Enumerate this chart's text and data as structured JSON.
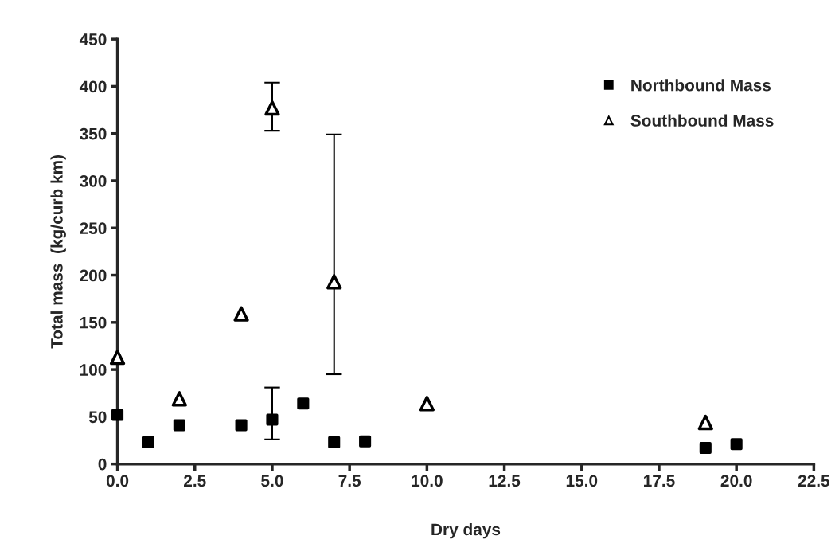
{
  "chart_data": {
    "type": "scatter",
    "xlabel": "Dry days",
    "ylabel": "Total mass  (kg/curb km)",
    "xlim": [
      0,
      22.5
    ],
    "xticks": [
      {
        "value": 0,
        "label": "0.0"
      },
      {
        "value": 2.5,
        "label": "2.5"
      },
      {
        "value": 5,
        "label": "5.0"
      },
      {
        "value": 7.5,
        "label": "7.5"
      },
      {
        "value": 10,
        "label": "10.0"
      },
      {
        "value": 12.5,
        "label": "12.5"
      },
      {
        "value": 15,
        "label": "15.0"
      },
      {
        "value": 17.5,
        "label": "17.5"
      },
      {
        "value": 20,
        "label": "20.0"
      },
      {
        "value": 22.5,
        "label": "22.5"
      }
    ],
    "ylim": [
      0,
      450
    ],
    "yticks": [
      0,
      50,
      100,
      150,
      200,
      250,
      300,
      350,
      400,
      450
    ],
    "grid": false,
    "legend": "top right",
    "series": [
      {
        "name": "Northbound Mass",
        "color": "#000000",
        "marker": "square",
        "x": [
          0,
          1,
          2,
          4,
          5,
          6,
          7,
          8,
          19,
          20
        ],
        "values": [
          52,
          23,
          41,
          41,
          47,
          64,
          23,
          24,
          17,
          21
        ],
        "errors": [
          null,
          null,
          null,
          null,
          [
            26,
            81
          ],
          null,
          null,
          null,
          null,
          null
        ]
      },
      {
        "name": "Southbound Mass",
        "color": "#000000",
        "marker": "triangle",
        "x": [
          0,
          2,
          4,
          5,
          7,
          10,
          19
        ],
        "values": [
          113,
          69,
          159,
          377,
          193,
          64,
          44
        ],
        "errors": [
          null,
          null,
          null,
          [
            353,
            404
          ],
          [
            95,
            349
          ],
          null,
          null
        ]
      }
    ]
  }
}
